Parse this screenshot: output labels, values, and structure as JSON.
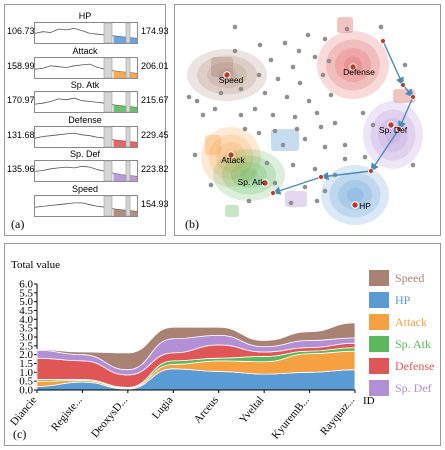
{
  "panel_a": {
    "label": "(a)",
    "rows": [
      {
        "name": "HP",
        "min": "106.73",
        "max": "174.93",
        "color": "#5b9bd5"
      },
      {
        "name": "Attack",
        "min": "158.99",
        "max": "206.01",
        "color": "#f5a142"
      },
      {
        "name": "Sp. Atk",
        "min": "170.97",
        "max": "215.67",
        "color": "#5cb85c"
      },
      {
        "name": "Defense",
        "min": "131.68",
        "max": "229.45",
        "color": "#e05656"
      },
      {
        "name": "Sp. Def",
        "min": "135.96",
        "max": "223.82",
        "color": "#b38fd6"
      },
      {
        "name": "Speed",
        "min": "",
        "max": "154.93",
        "color": "#a98274"
      }
    ]
  },
  "panel_b": {
    "label": "(b)",
    "clusters": [
      {
        "name": "Speed",
        "color": "#a98274"
      },
      {
        "name": "Defense",
        "color": "#e05656"
      },
      {
        "name": "Sp. Def",
        "color": "#b38fd6"
      },
      {
        "name": "Attack",
        "color": "#f5a142"
      },
      {
        "name": "Sp. Atk",
        "color": "#5cb85c"
      },
      {
        "name": "HP",
        "color": "#5b9bd5"
      }
    ]
  },
  "panel_c": {
    "label": "(c)"
  },
  "chart_data": {
    "type": "area",
    "title": "",
    "ylabel": "Total value",
    "xlabel": "ID",
    "ylim": [
      0,
      6
    ],
    "yticks": [
      "0.0",
      "0.5",
      "1.0",
      "1.5",
      "2.0",
      "2.5",
      "3.0",
      "3.5",
      "4.0",
      "4.5",
      "5.0",
      "5.5",
      "6.0"
    ],
    "categories": [
      "Diancie",
      "Registe...",
      "DeoxysD...",
      "Lugia",
      "Arceus",
      "Yveltal",
      "KyuremB...",
      "Rayquaz..."
    ],
    "legend_position": "right",
    "series": [
      {
        "name": "HP",
        "color": "#5b9bd5",
        "values": [
          0.2,
          0.45,
          0.05,
          1.2,
          1.05,
          0.9,
          1.0,
          1.15
        ]
      },
      {
        "name": "Attack",
        "color": "#f5a142",
        "values": [
          0.3,
          0.1,
          0.05,
          0.25,
          0.6,
          0.7,
          1.05,
          1.05
        ]
      },
      {
        "name": "Sp. Atk",
        "color": "#5cb85c",
        "values": [
          0.1,
          0.05,
          0.05,
          0.2,
          0.15,
          0.3,
          0.15,
          0.2
        ]
      },
      {
        "name": "Defense",
        "color": "#e05656",
        "values": [
          1.2,
          1.05,
          0.7,
          0.45,
          0.75,
          0.25,
          0.2,
          0.25
        ]
      },
      {
        "name": "Sp. Def",
        "color": "#b38fd6",
        "values": [
          0.45,
          0.35,
          0.3,
          0.8,
          0.55,
          0.3,
          0.4,
          0.3
        ]
      },
      {
        "name": "Speed",
        "color": "#a98274",
        "values": [
          0.05,
          0.15,
          0.95,
          0.65,
          0.45,
          0.35,
          0.5,
          0.85
        ]
      }
    ]
  }
}
